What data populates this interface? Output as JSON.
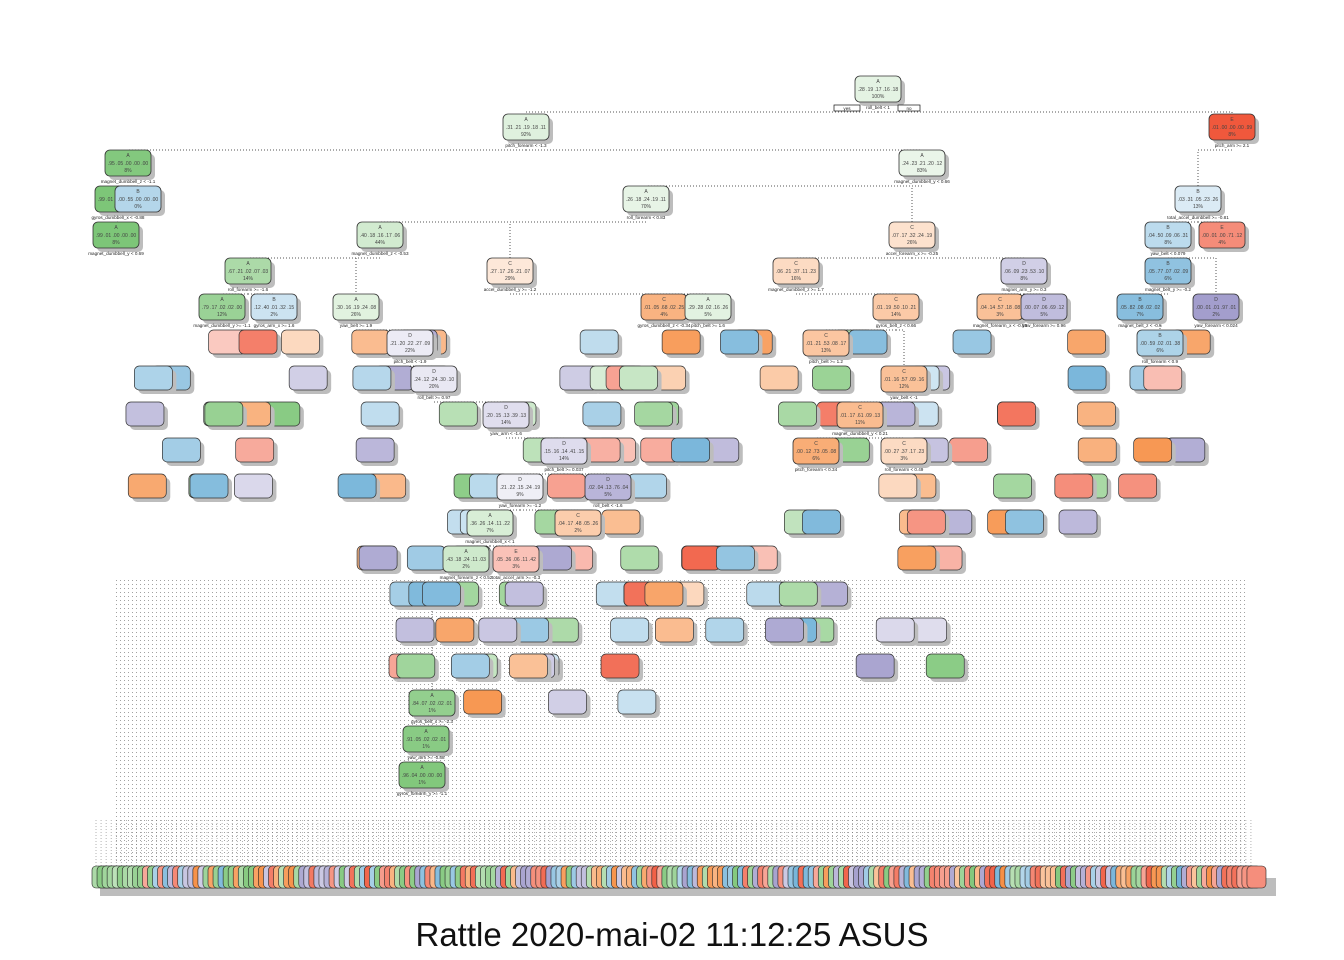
{
  "caption": "Rattle 2020-mai-02 11:12:25 ASUS",
  "colors": {
    "A": "#7cc576",
    "B": "#6aaed6",
    "C": "#f68a3c",
    "D": "#a09bcb",
    "E": "#f0563a",
    "edge": "#555555",
    "shadow": "#bdbdbd"
  },
  "tree": {
    "nodes": [
      {
        "id": "root",
        "class": "A",
        "probs": ".28 .19 .17 .16 .18",
        "pct": "100%",
        "split": "roll_belt < 1",
        "split_yes": "yes",
        "split_no": "no"
      },
      {
        "id": "n2",
        "class": "A",
        "probs": ".31 .21 .19 .18 .11",
        "pct": "92%",
        "split": "pitch_forearm < -1.3"
      },
      {
        "id": "n3",
        "class": "E",
        "probs": ".01 .00 .00 .00 .99",
        "pct": "8%",
        "split": "pitch_arm >= 2.1"
      },
      {
        "id": "n4",
        "class": "A",
        "probs": ".95 .05 .00 .00 .00",
        "pct": "8%",
        "split": "magnet_dumbbell_z < -1.1"
      },
      {
        "id": "n5",
        "class": "A",
        "probs": ".24 .23 .21 .20 .12",
        "pct": "83%",
        "split": "magnet_dumbbell_y < 0.66"
      },
      {
        "id": "n8",
        "class": "A",
        "probs": ".99 .01 .00 .00 .00",
        "pct": "8%",
        "split": "gyros_dumbbell_x < -0.88"
      },
      {
        "id": "n9",
        "class": "B",
        "probs": ".00 .55 .00 .00 .00",
        "pct": "0%",
        "split": ""
      },
      {
        "id": "n10",
        "class": "A",
        "probs": ".26 .18 .24 .19 .11",
        "pct": "70%",
        "split": "roll_forearm < 0.83"
      },
      {
        "id": "n11",
        "class": "B",
        "probs": ".03 .31 .05 .23 .26",
        "pct": "13%",
        "split": "total_accel_dumbbell >= -0.81"
      },
      {
        "id": "n16",
        "class": "A",
        "probs": ".99 .01 .00 .00 .00",
        "pct": "8%",
        "split": "magnet_dumbbell_y < 0.69"
      },
      {
        "id": "n20",
        "class": "A",
        "probs": ".40 .18 .16 .17 .06",
        "pct": "44%",
        "split": "magnet_dumbbell_z < -0.53"
      },
      {
        "id": "n21",
        "class": "C",
        "probs": ".07 .17 .32 .24 .19",
        "pct": "26%",
        "split": "accel_forearm_x >= -0.25"
      },
      {
        "id": "n22",
        "class": "B",
        "probs": ".04 .50 .09 .06 .31",
        "pct": "8%",
        "split": "yaw_belt < 0.079"
      },
      {
        "id": "n23",
        "class": "E",
        "probs": ".00 .01 .00 .71 .12",
        "pct": "4%",
        "split": ""
      },
      {
        "id": "n40",
        "class": "A",
        "probs": ".67 .21 .02 .07 .03",
        "pct": "14%",
        "split": "roll_forearm >= -1.6"
      },
      {
        "id": "n41",
        "class": "C",
        "probs": ".27 .17 .26 .21 .07",
        "pct": "29%",
        "split": "accel_dumbbell_y >= -1.2"
      },
      {
        "id": "n42",
        "class": "C",
        "probs": ".06 .21 .37 .11 .23",
        "pct": "16%",
        "split": "magnet_dumbbell_z >= 1.7"
      },
      {
        "id": "n43",
        "class": "D",
        "probs": ".06 .09 .23 .53 .10",
        "pct": "8%",
        "split": "magnet_arm_y >= 0.3"
      },
      {
        "id": "n44",
        "class": "B",
        "probs": ".05 .77 .07 .02 .09",
        "pct": "6%",
        "split": "magnet_belt_y >= -0.2"
      },
      {
        "id": "n45",
        "class": "D",
        "probs": ".00 .01 .01 .97 .01",
        "pct": "2%",
        "split": "yaw_forearm < 0.024"
      },
      {
        "id": "n80",
        "class": "A",
        "probs": ".79 .17 .02 .02 .00",
        "pct": "12%",
        "split": "magnet_dumbbell_y >= -1.1"
      },
      {
        "id": "n81",
        "class": "B",
        "probs": ".12 .40 .01 .32 .15",
        "pct": "2%",
        "split": "gyros_arm_x >= 1.6"
      },
      {
        "id": "n82",
        "class": "A",
        "probs": ".30 .16 .19 .24 .08",
        "pct": "26%",
        "split": "yaw_belt >= 1.9"
      },
      {
        "id": "n83",
        "class": "C",
        "probs": ".01 .05 .68 .02 .25",
        "pct": "4%",
        "split": "gyros_dumbbell_z < -0.34"
      },
      {
        "id": "n84",
        "class": "A",
        "probs": ".29 .28 .02 .16 .26",
        "pct": "5%",
        "split": "pitch_belt >= 1.6"
      },
      {
        "id": "n85",
        "class": "C",
        "probs": ".01 .19 .50 .10 .21",
        "pct": "14%",
        "split": "gyros_belt_z < 0.66"
      },
      {
        "id": "n86",
        "class": "C",
        "probs": ".04 .14 .57 .18 .08",
        "pct": "3%",
        "split": "magnet_forearm_x < -0.59"
      },
      {
        "id": "n87",
        "class": "D",
        "probs": ".00 .07 .06 .69 .12",
        "pct": "5%",
        "split": "yaw_forearm >= 0.96"
      },
      {
        "id": "n88",
        "class": "B",
        "probs": ".05 .82 .08 .02 .02",
        "pct": "7%",
        "split": "magnet_belt_z < -0.5"
      },
      {
        "id": "n89",
        "class": "B",
        "probs": ".00 .59 .02 .01 .38",
        "pct": "6%",
        "split": "roll_forearm < 0.9"
      },
      {
        "id": "n164",
        "class": "D",
        "probs": ".21 .20 .22 .27 .09",
        "pct": "22%",
        "split": "pitch_belt < -1.9"
      },
      {
        "id": "n170",
        "class": "C",
        "probs": ".01 .21 .53 .08 .17",
        "pct": "13%",
        "split": "pitch_belt >= 1.2"
      },
      {
        "id": "n328",
        "class": "D",
        "probs": ".24 .12 .24 .30 .10",
        "pct": "20%",
        "split": "roll_belt >= 0.97"
      },
      {
        "id": "n340",
        "class": "C",
        "probs": ".01 .16 .57 .09 .16",
        "pct": "12%",
        "split": "yaw_belt < -1"
      },
      {
        "id": "n656",
        "class": "D",
        "probs": ".20 .15 .13 .39 .13",
        "pct": "14%",
        "split": "yaw_arm < -1.6"
      },
      {
        "id": "n680",
        "class": "C",
        "probs": ".01 .17 .61 .09 .13",
        "pct": "11%",
        "split": "magnet_dumbbell_y < 0.21"
      },
      {
        "id": "n1312",
        "class": "D",
        "probs": ".15 .16 .14 .41 .15",
        "pct": "14%",
        "split": "pitch_belt >= 0.037"
      },
      {
        "id": "n1360",
        "class": "C",
        "probs": ".00 .12 .73 .05 .08",
        "pct": "6%",
        "split": "pitch_forearm < 0.34"
      },
      {
        "id": "n1361",
        "class": "C",
        "probs": ".00 .27 .37 .17 .23",
        "pct": "3%",
        "split": "roll_forearm < 0.49"
      },
      {
        "id": "n2624",
        "class": "D",
        "probs": ".21 .22 .15 .24 .19",
        "pct": "9%",
        "split": "yaw_forearm >= -1.2"
      },
      {
        "id": "n2625",
        "class": "D",
        "probs": ".02 .04 .13 .76 .04",
        "pct": "5%",
        "split": "roll_belt < -1.6"
      },
      {
        "id": "n5248",
        "class": "A",
        "probs": ".36 .26 .14 .11 .22",
        "pct": "7%",
        "split": "magnet_dumbbell_x < 1"
      },
      {
        "id": "n5249",
        "class": "C",
        "probs": ".04 .17 .48 .05 .26",
        "pct": "2%",
        "split": ""
      },
      {
        "id": "n10496",
        "class": "A",
        "probs": ".43 .18 .24 .11 .03",
        "pct": "2%",
        "split": "magnet_forearm_z < 0.52"
      },
      {
        "id": "n10497",
        "class": "E",
        "probs": ".05 .36 .06 .11 .42",
        "pct": "3%",
        "split": "total_accel_arm >= -0.3"
      },
      {
        "id": "n20992",
        "class": "A",
        "probs": ".84 .07 .02 .02 .01",
        "pct": "1%",
        "split": "gyros_belt_x >= -2.3"
      },
      {
        "id": "n41984",
        "class": "A",
        "probs": ".91 .05 .02 .02 .01",
        "pct": "1%",
        "split": "yaw_arm >= -0.88"
      },
      {
        "id": "n83968",
        "class": "A",
        "probs": ".96 .04 .00 .00 .00",
        "pct": "1%",
        "split": "gyros_forearm_y >= -1.1"
      }
    ]
  }
}
